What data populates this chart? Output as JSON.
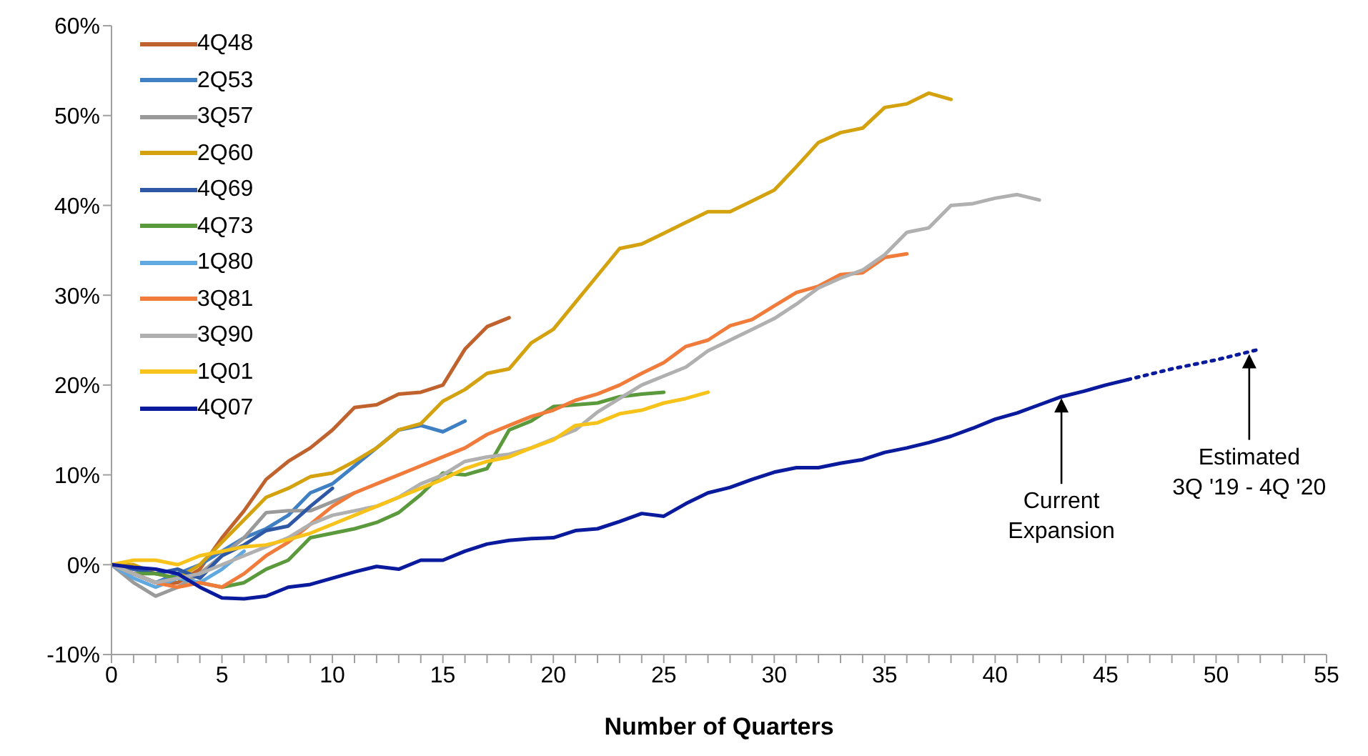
{
  "chart_data": {
    "type": "line",
    "xlabel": "Number of Quarters",
    "x": [
      0,
      1,
      2,
      3,
      4,
      5,
      6,
      7,
      8,
      9,
      10,
      11,
      12,
      13,
      14,
      15,
      16,
      17,
      18,
      19,
      20,
      21,
      22,
      23,
      24,
      25,
      26,
      27,
      28,
      29,
      30,
      31,
      32,
      33,
      34,
      35,
      36,
      37,
      38,
      39,
      40,
      41,
      42,
      43,
      44,
      45,
      46
    ],
    "series": [
      {
        "name": "4Q48",
        "color": "#c0622d",
        "values": [
          0,
          -1,
          -2,
          -2,
          -0.5,
          3,
          6,
          9.5,
          11.5,
          13,
          15,
          17.5,
          17.8,
          19,
          19.2,
          20,
          24,
          26.5,
          27.5,
          null,
          null,
          null,
          null,
          null,
          null,
          null,
          null,
          null,
          null,
          null,
          null,
          null,
          null,
          null,
          null,
          null,
          null,
          null,
          null,
          null,
          null,
          null,
          null,
          null,
          null,
          null,
          null
        ]
      },
      {
        "name": "2Q53",
        "color": "#3f7fc4",
        "values": [
          0,
          -1,
          -2,
          -1,
          0,
          1.5,
          3,
          4,
          5.5,
          8,
          9,
          11,
          13,
          15,
          15.5,
          14.8,
          16,
          null,
          null,
          null,
          null,
          null,
          null,
          null,
          null,
          null,
          null,
          null,
          null,
          null,
          null,
          null,
          null,
          null,
          null,
          null,
          null,
          null,
          null,
          null,
          null,
          null,
          null,
          null,
          null,
          null,
          null
        ]
      },
      {
        "name": "3Q57",
        "color": "#9a9a9a",
        "values": [
          0,
          -2,
          -3.5,
          -2.5,
          -1,
          1,
          3,
          5.8,
          6,
          6,
          7,
          8,
          null,
          null,
          null,
          null,
          null,
          null,
          null,
          null,
          null,
          null,
          null,
          null,
          null,
          null,
          null,
          null,
          null,
          null,
          null,
          null,
          null,
          null,
          null,
          null,
          null,
          null,
          null,
          null,
          null,
          null,
          null,
          null,
          null,
          null,
          null
        ]
      },
      {
        "name": "2Q60",
        "color": "#d4a20e",
        "values": [
          0,
          0,
          -1,
          -1.5,
          0,
          2.5,
          5,
          7.5,
          8.5,
          9.8,
          10.2,
          11.5,
          13,
          15,
          15.7,
          18.2,
          19.5,
          21.3,
          21.8,
          24.7,
          26.2,
          29.2,
          32.2,
          35.2,
          35.7,
          36.9,
          38.1,
          39.3,
          39.3,
          40.5,
          41.7,
          44.3,
          47,
          48.1,
          48.6,
          50.9,
          51.3,
          52.5,
          51.8,
          null,
          null,
          null,
          null,
          null,
          null,
          null,
          null
        ]
      },
      {
        "name": "4Q69",
        "color": "#2e58a6",
        "values": [
          0,
          -0.5,
          -1,
          -0.5,
          -1.5,
          1,
          2.2,
          3.8,
          4.3,
          6.5,
          8.5,
          null,
          null,
          null,
          null,
          null,
          null,
          null,
          null,
          null,
          null,
          null,
          null,
          null,
          null,
          null,
          null,
          null,
          null,
          null,
          null,
          null,
          null,
          null,
          null,
          null,
          null,
          null,
          null,
          null,
          null,
          null,
          null,
          null,
          null,
          null,
          null
        ]
      },
      {
        "name": "4Q73",
        "color": "#5b9a3c",
        "values": [
          0,
          -1,
          -1,
          -1.5,
          -2,
          -2.5,
          -2,
          -0.5,
          0.5,
          3,
          3.5,
          4,
          4.7,
          5.8,
          7.8,
          10.2,
          10,
          10.7,
          15,
          16,
          17.6,
          17.8,
          18,
          18.7,
          19,
          19.2,
          null,
          null,
          null,
          null,
          null,
          null,
          null,
          null,
          null,
          null,
          null,
          null,
          null,
          null,
          null,
          null,
          null,
          null,
          null,
          null,
          null
        ]
      },
      {
        "name": "1Q80",
        "color": "#5fa8e0",
        "values": [
          0,
          -1.5,
          -2.5,
          -1.5,
          -2,
          -0.5,
          1.5,
          null,
          null,
          null,
          null,
          null,
          null,
          null,
          null,
          null,
          null,
          null,
          null,
          null,
          null,
          null,
          null,
          null,
          null,
          null,
          null,
          null,
          null,
          null,
          null,
          null,
          null,
          null,
          null,
          null,
          null,
          null,
          null,
          null,
          null,
          null,
          null,
          null,
          null,
          null,
          null
        ]
      },
      {
        "name": "3Q81",
        "color": "#f07b3a",
        "values": [
          0,
          -1,
          -2,
          -2.5,
          -2,
          -2.5,
          -1,
          1,
          2.5,
          4.5,
          6.5,
          8,
          9,
          10,
          11,
          12,
          13,
          14.5,
          15.5,
          16.5,
          17.2,
          18.3,
          19,
          20,
          21.3,
          22.5,
          24.3,
          25,
          26.6,
          27.3,
          28.8,
          30.3,
          31,
          32.3,
          32.5,
          34.2,
          34.6,
          null,
          null,
          null,
          null,
          null,
          null,
          null,
          null,
          null,
          null
        ]
      },
      {
        "name": "3Q90",
        "color": "#b0b0b0",
        "values": [
          0,
          -1,
          -2,
          -1.5,
          -1,
          0,
          1,
          2,
          3,
          4.5,
          5.5,
          6,
          6.5,
          7.5,
          9,
          10,
          11.5,
          12,
          12.3,
          13,
          14,
          15,
          17,
          18.5,
          20,
          21,
          22,
          23.8,
          25,
          26.2,
          27.4,
          29,
          30.8,
          31.9,
          32.8,
          34.5,
          37,
          37.5,
          40,
          40.2,
          40.8,
          41.2,
          40.6,
          null,
          null,
          null,
          null
        ]
      },
      {
        "name": "1Q01",
        "color": "#f7c21a",
        "values": [
          0,
          0.5,
          0.5,
          0,
          1,
          1.5,
          2,
          2.2,
          2.8,
          3.5,
          4.5,
          5.5,
          6.5,
          7.5,
          8.5,
          9.5,
          10.7,
          11.5,
          12,
          13,
          13.9,
          15.5,
          15.8,
          16.8,
          17.2,
          18,
          18.5,
          19.2,
          null,
          null,
          null,
          null,
          null,
          null,
          null,
          null,
          null,
          null,
          null,
          null,
          null,
          null,
          null,
          null,
          null,
          null,
          null
        ]
      },
      {
        "name": "4Q07",
        "color": "#0a1a9c",
        "values": [
          0,
          -0.3,
          -0.5,
          -1,
          -2.5,
          -3.7,
          -3.8,
          -3.5,
          -2.5,
          -2.2,
          -1.5,
          -0.8,
          -0.2,
          -0.5,
          0.5,
          0.5,
          1.5,
          2.3,
          2.7,
          2.9,
          3,
          3.8,
          4,
          4.8,
          5.7,
          5.4,
          6.8,
          8,
          8.6,
          9.5,
          10.3,
          10.8,
          10.8,
          11.3,
          11.7,
          12.5,
          13,
          13.6,
          14.3,
          15.2,
          16.2,
          16.9,
          17.8,
          18.7,
          19.3,
          20,
          20.6
        ]
      },
      {
        "color": "#0a1a9c",
        "line_style": "dotted",
        "x": [
          46,
          47,
          48,
          49,
          50,
          51,
          52
        ],
        "values": [
          20.6,
          21.2,
          21.8,
          22.3,
          22.8,
          23.4,
          24.0
        ]
      }
    ],
    "xlim": [
      0,
      55
    ],
    "xticks": [
      0,
      {
        "value": 1,
        "label": null
      },
      {
        "value": 2,
        "label": null
      },
      {
        "value": 3,
        "label": null
      },
      {
        "value": 4,
        "label": null
      },
      5,
      {
        "value": 6,
        "label": null
      },
      {
        "value": 7,
        "label": null
      },
      {
        "value": 8,
        "label": null
      },
      {
        "value": 9,
        "label": null
      },
      10,
      {
        "value": 11,
        "label": null
      },
      {
        "value": 12,
        "label": null
      },
      {
        "value": 13,
        "label": null
      },
      {
        "value": 14,
        "label": null
      },
      15,
      {
        "value": 16,
        "label": null
      },
      {
        "value": 17,
        "label": null
      },
      {
        "value": 18,
        "label": null
      },
      {
        "value": 19,
        "label": null
      },
      20,
      {
        "value": 21,
        "label": null
      },
      {
        "value": 22,
        "label": null
      },
      {
        "value": 23,
        "label": null
      },
      {
        "value": 24,
        "label": null
      },
      25,
      {
        "value": 26,
        "label": null
      },
      {
        "value": 27,
        "label": null
      },
      {
        "value": 28,
        "label": null
      },
      {
        "value": 29,
        "label": null
      },
      30,
      {
        "value": 31,
        "label": null
      },
      {
        "value": 32,
        "label": null
      },
      {
        "value": 33,
        "label": null
      },
      {
        "value": 34,
        "label": null
      },
      35,
      {
        "value": 36,
        "label": null
      },
      {
        "value": 37,
        "label": null
      },
      {
        "value": 38,
        "label": null
      },
      {
        "value": 39,
        "label": null
      },
      40,
      {
        "value": 41,
        "label": null
      },
      {
        "value": 42,
        "label": null
      },
      {
        "value": 43,
        "label": null
      },
      {
        "value": 44,
        "label": null
      },
      45,
      {
        "value": 46,
        "label": null
      },
      {
        "value": 47,
        "label": null
      },
      {
        "value": 48,
        "label": null
      },
      {
        "value": 49,
        "label": null
      },
      50,
      {
        "value": 51,
        "label": null
      },
      {
        "value": 52,
        "label": null
      },
      {
        "value": 53,
        "label": null
      },
      {
        "value": 54,
        "label": null
      },
      55
    ],
    "ylim": [
      -10,
      60
    ],
    "yticks": [
      {
        "value": -10,
        "label": "-10%"
      },
      {
        "value": 0,
        "label": "0%"
      },
      {
        "value": 10,
        "label": "10%"
      },
      {
        "value": 20,
        "label": "20%"
      },
      {
        "value": 30,
        "label": "30%"
      },
      {
        "value": 40,
        "label": "40%"
      },
      {
        "value": 50,
        "label": "50%"
      },
      {
        "value": 60,
        "label": "60%"
      }
    ],
    "grid": false,
    "legend": "top left",
    "marker": "none",
    "line_style": "solid",
    "annotations": [
      {
        "text": "Current Expansion",
        "x": 43,
        "y": 18.7
      },
      {
        "text": "Estimated 3Q '19 - 4Q '20",
        "x": 51.5,
        "y": 23.6
      }
    ]
  }
}
